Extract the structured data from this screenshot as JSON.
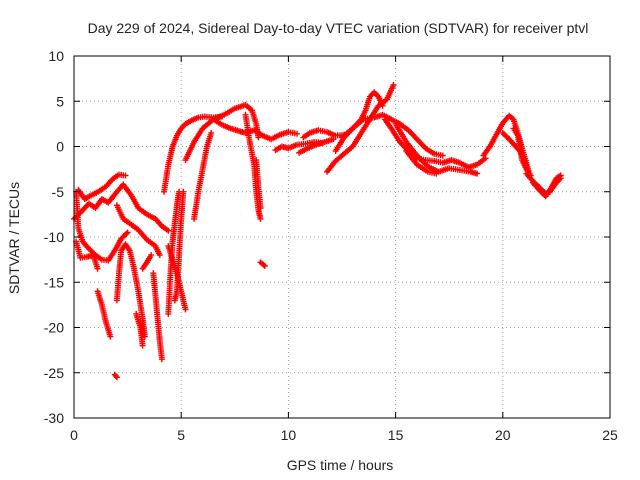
{
  "chart_data": {
    "type": "scatter",
    "title": "Day 229 of 2024, Sidereal Day-to-day VTEC variation (SDTVAR) for receiver ptvl",
    "xlabel": "GPS time / hours",
    "ylabel": "SDTVAR / TECUs",
    "xlim": [
      0,
      25
    ],
    "ylim": [
      -30,
      10
    ],
    "xticks": [
      "0",
      "5",
      "10",
      "15",
      "20",
      "25"
    ],
    "yticks": [
      "10",
      "5",
      "0",
      "-5",
      "-10",
      "-15",
      "-20",
      "-25",
      "-30"
    ],
    "grid": true,
    "marker": "plus",
    "series": [
      {
        "name": "SDTVAR",
        "color": "#ff0000",
        "tracks": [
          [
            [
              0.0,
              -8.0
            ],
            [
              0.3,
              -7.3
            ],
            [
              0.7,
              -6.3
            ],
            [
              1.0,
              -6.8
            ],
            [
              1.3,
              -5.8
            ],
            [
              1.6,
              -6.2
            ],
            [
              2.0,
              -5.0
            ],
            [
              2.3,
              -4.2
            ],
            [
              2.7,
              -5.5
            ],
            [
              3.0,
              -6.8
            ],
            [
              3.4,
              -7.5
            ],
            [
              3.8,
              -8.0
            ],
            [
              4.1,
              -8.8
            ],
            [
              4.4,
              -9.3
            ]
          ],
          [
            [
              0.1,
              -5.0
            ],
            [
              0.2,
              -9.0
            ],
            [
              0.4,
              -10.5
            ],
            [
              0.7,
              -11.3
            ],
            [
              1.0,
              -12.0
            ],
            [
              1.3,
              -12.5
            ],
            [
              1.6,
              -12.6
            ],
            [
              1.9,
              -11.5
            ],
            [
              2.2,
              -10.2
            ],
            [
              2.5,
              -9.5
            ]
          ],
          [
            [
              0.2,
              -4.8
            ],
            [
              0.5,
              -5.8
            ],
            [
              0.8,
              -5.4
            ],
            [
              1.2,
              -4.9
            ],
            [
              1.5,
              -4.4
            ],
            [
              1.8,
              -3.6
            ],
            [
              2.1,
              -3.1
            ],
            [
              2.4,
              -3.2
            ]
          ],
          [
            [
              0.1,
              -10.5
            ],
            [
              0.3,
              -12.3
            ],
            [
              0.6,
              -12.2
            ],
            [
              0.9,
              -12.0
            ],
            [
              1.1,
              -13.5
            ]
          ],
          [
            [
              1.1,
              -16.0
            ],
            [
              1.3,
              -17.5
            ],
            [
              1.5,
              -19.5
            ],
            [
              1.7,
              -21.0
            ]
          ],
          [
            [
              1.9,
              -25.2
            ],
            [
              2.0,
              -25.5
            ]
          ],
          [
            [
              2.0,
              -17.0
            ],
            [
              2.1,
              -14.0
            ],
            [
              2.2,
              -11.5
            ],
            [
              2.4,
              -10.8
            ],
            [
              2.6,
              -11.5
            ],
            [
              2.8,
              -13.5
            ],
            [
              3.0,
              -16.0
            ],
            [
              3.2,
              -19.0
            ],
            [
              3.3,
              -21.0
            ]
          ],
          [
            [
              2.0,
              -6.5
            ],
            [
              2.3,
              -8.0
            ],
            [
              2.6,
              -8.5
            ],
            [
              3.0,
              -9.2
            ],
            [
              3.4,
              -10.3
            ],
            [
              3.8,
              -11.0
            ],
            [
              4.0,
              -12.0
            ]
          ],
          [
            [
              2.9,
              -18.5
            ],
            [
              3.1,
              -20.0
            ],
            [
              3.2,
              -22.0
            ]
          ],
          [
            [
              3.2,
              -13.5
            ],
            [
              3.4,
              -12.8
            ],
            [
              3.6,
              -12.0
            ]
          ],
          [
            [
              3.7,
              -14.0
            ],
            [
              3.8,
              -16.5
            ],
            [
              3.9,
              -19.0
            ],
            [
              4.0,
              -21.5
            ],
            [
              4.1,
              -23.5
            ]
          ],
          [
            [
              4.2,
              -5.0
            ],
            [
              4.4,
              -2.0
            ],
            [
              4.6,
              0.0
            ],
            [
              4.8,
              1.2
            ],
            [
              5.0,
              2.0
            ],
            [
              5.2,
              2.5
            ],
            [
              5.5,
              2.9
            ],
            [
              5.8,
              3.2
            ],
            [
              6.1,
              3.3
            ],
            [
              6.5,
              3.2
            ],
            [
              6.9,
              3.3
            ]
          ],
          [
            [
              4.4,
              -11.0
            ],
            [
              4.6,
              -12.5
            ],
            [
              4.8,
              -14.0
            ],
            [
              5.0,
              -16.0
            ],
            [
              5.2,
              -18.0
            ]
          ],
          [
            [
              4.4,
              -18.5
            ],
            [
              4.5,
              -14.0
            ],
            [
              4.6,
              -10.5
            ],
            [
              4.7,
              -8.5
            ],
            [
              4.8,
              -6.5
            ],
            [
              4.9,
              -5.0
            ]
          ],
          [
            [
              5.1,
              -5.0
            ],
            [
              5.0,
              -8.0
            ],
            [
              4.9,
              -12.0
            ],
            [
              4.8,
              -16.0
            ],
            [
              4.7,
              -17.0
            ]
          ],
          [
            [
              5.2,
              -1.5
            ],
            [
              5.6,
              0.5
            ],
            [
              6.0,
              2.0
            ],
            [
              6.5,
              3.0
            ],
            [
              7.0,
              3.5
            ],
            [
              7.5,
              4.2
            ],
            [
              8.0,
              4.6
            ],
            [
              8.3,
              4.0
            ],
            [
              8.5,
              2.5
            ],
            [
              8.6,
              1.0
            ]
          ],
          [
            [
              5.6,
              -8.0
            ],
            [
              5.8,
              -5.0
            ],
            [
              6.0,
              -2.5
            ],
            [
              6.2,
              0.0
            ],
            [
              6.4,
              1.5
            ]
          ],
          [
            [
              6.5,
              3.0
            ],
            [
              6.9,
              2.4
            ],
            [
              7.3,
              2.0
            ],
            [
              7.7,
              1.7
            ],
            [
              8.0,
              1.5
            ],
            [
              8.4,
              1.8
            ],
            [
              8.8,
              1.2
            ],
            [
              9.2,
              0.8
            ],
            [
              9.6,
              1.3
            ],
            [
              10.0,
              1.6
            ],
            [
              10.4,
              1.4
            ]
          ],
          [
            [
              8.0,
              3.5
            ],
            [
              8.2,
              0.5
            ],
            [
              8.4,
              -2.0
            ],
            [
              8.5,
              -5.0
            ],
            [
              8.6,
              -7.0
            ],
            [
              8.7,
              -8.0
            ]
          ],
          [
            [
              8.5,
              -1.5
            ],
            [
              8.6,
              -4.5
            ],
            [
              8.7,
              -6.8
            ]
          ],
          [
            [
              8.7,
              -12.8
            ],
            [
              8.9,
              -13.2
            ]
          ],
          [
            [
              9.4,
              -0.4
            ],
            [
              9.7,
              0.0
            ],
            [
              10.0,
              -0.2
            ],
            [
              10.4,
              0.2
            ],
            [
              10.8,
              0.3
            ],
            [
              11.2,
              0.5
            ],
            [
              11.6,
              0.4
            ]
          ],
          [
            [
              10.5,
              -0.7
            ],
            [
              10.9,
              -0.2
            ],
            [
              11.3,
              0.2
            ],
            [
              11.7,
              0.5
            ],
            [
              12.1,
              0.8
            ]
          ],
          [
            [
              10.7,
              1.0
            ],
            [
              11.0,
              1.5
            ],
            [
              11.4,
              1.8
            ],
            [
              11.8,
              1.6
            ],
            [
              12.2,
              1.2
            ],
            [
              12.6,
              1.3
            ]
          ],
          [
            [
              11.8,
              -2.8
            ],
            [
              12.2,
              -1.6
            ],
            [
              12.6,
              -0.8
            ],
            [
              13.0,
              0.0
            ],
            [
              13.4,
              1.5
            ],
            [
              13.8,
              3.0
            ],
            [
              14.2,
              4.5
            ],
            [
              14.6,
              5.2
            ],
            [
              14.9,
              6.8
            ]
          ],
          [
            [
              12.2,
              -0.5
            ],
            [
              12.6,
              1.0
            ],
            [
              13.0,
              2.0
            ],
            [
              13.4,
              3.0
            ],
            [
              13.6,
              4.0
            ],
            [
              13.8,
              5.5
            ],
            [
              14.0,
              6.0
            ],
            [
              14.2,
              5.5
            ],
            [
              14.4,
              4.5
            ]
          ],
          [
            [
              12.5,
              1.0
            ],
            [
              13.0,
              2.0
            ],
            [
              13.5,
              3.0
            ],
            [
              14.0,
              3.2
            ],
            [
              14.4,
              3.5
            ],
            [
              14.8,
              3.0
            ],
            [
              15.2,
              2.5
            ],
            [
              15.6,
              1.8
            ],
            [
              16.0,
              0.8
            ],
            [
              16.4,
              -0.2
            ],
            [
              16.8,
              -0.8
            ],
            [
              17.2,
              -1.0
            ]
          ],
          [
            [
              14.5,
              3.0
            ],
            [
              14.8,
              2.0
            ],
            [
              15.2,
              0.5
            ],
            [
              15.6,
              -0.5
            ],
            [
              16.0,
              -1.3
            ],
            [
              16.4,
              -1.5
            ],
            [
              16.8,
              -1.6
            ],
            [
              17.2,
              -1.8
            ],
            [
              17.6,
              -1.5
            ],
            [
              18.0,
              -1.8
            ],
            [
              18.4,
              -2.3
            ],
            [
              18.8,
              -2.0
            ],
            [
              19.2,
              -1.3
            ]
          ],
          [
            [
              15.0,
              2.5
            ],
            [
              15.5,
              0.5
            ],
            [
              16.0,
              -1.0
            ],
            [
              16.5,
              -2.2
            ],
            [
              17.0,
              -2.8
            ],
            [
              17.5,
              -2.4
            ],
            [
              18.0,
              -2.6
            ],
            [
              18.5,
              -2.8
            ],
            [
              18.8,
              -3.0
            ]
          ],
          [
            [
              15.5,
              -0.5
            ],
            [
              16.0,
              -2.0
            ],
            [
              16.5,
              -2.8
            ],
            [
              16.9,
              -3.0
            ]
          ],
          [
            [
              19.1,
              -1.0
            ],
            [
              19.4,
              0.0
            ],
            [
              19.7,
              1.3
            ],
            [
              20.0,
              2.6
            ],
            [
              20.3,
              3.4
            ],
            [
              20.5,
              3.0
            ],
            [
              20.7,
              1.5
            ],
            [
              20.9,
              -0.2
            ],
            [
              21.1,
              -1.8
            ],
            [
              21.2,
              -2.7
            ]
          ],
          [
            [
              20.0,
              1.5
            ],
            [
              20.3,
              0.8
            ],
            [
              20.6,
              0.0
            ],
            [
              20.8,
              -0.5
            ],
            [
              21.0,
              -1.5
            ],
            [
              21.2,
              -3.0
            ]
          ],
          [
            [
              20.5,
              2.0
            ],
            [
              20.7,
              1.2
            ],
            [
              20.9,
              -1.5
            ],
            [
              21.1,
              -2.5
            ],
            [
              21.3,
              -3.2
            ]
          ],
          [
            [
              21.1,
              -3.0
            ],
            [
              21.4,
              -3.8
            ],
            [
              21.7,
              -4.5
            ],
            [
              22.0,
              -5.2
            ],
            [
              22.2,
              -5.0
            ],
            [
              22.5,
              -4.0
            ],
            [
              22.7,
              -3.5
            ]
          ],
          [
            [
              21.4,
              -4.0
            ],
            [
              21.7,
              -4.8
            ],
            [
              22.0,
              -5.5
            ],
            [
              22.2,
              -4.8
            ],
            [
              22.5,
              -3.5
            ],
            [
              22.7,
              -3.2
            ]
          ]
        ]
      }
    ]
  }
}
